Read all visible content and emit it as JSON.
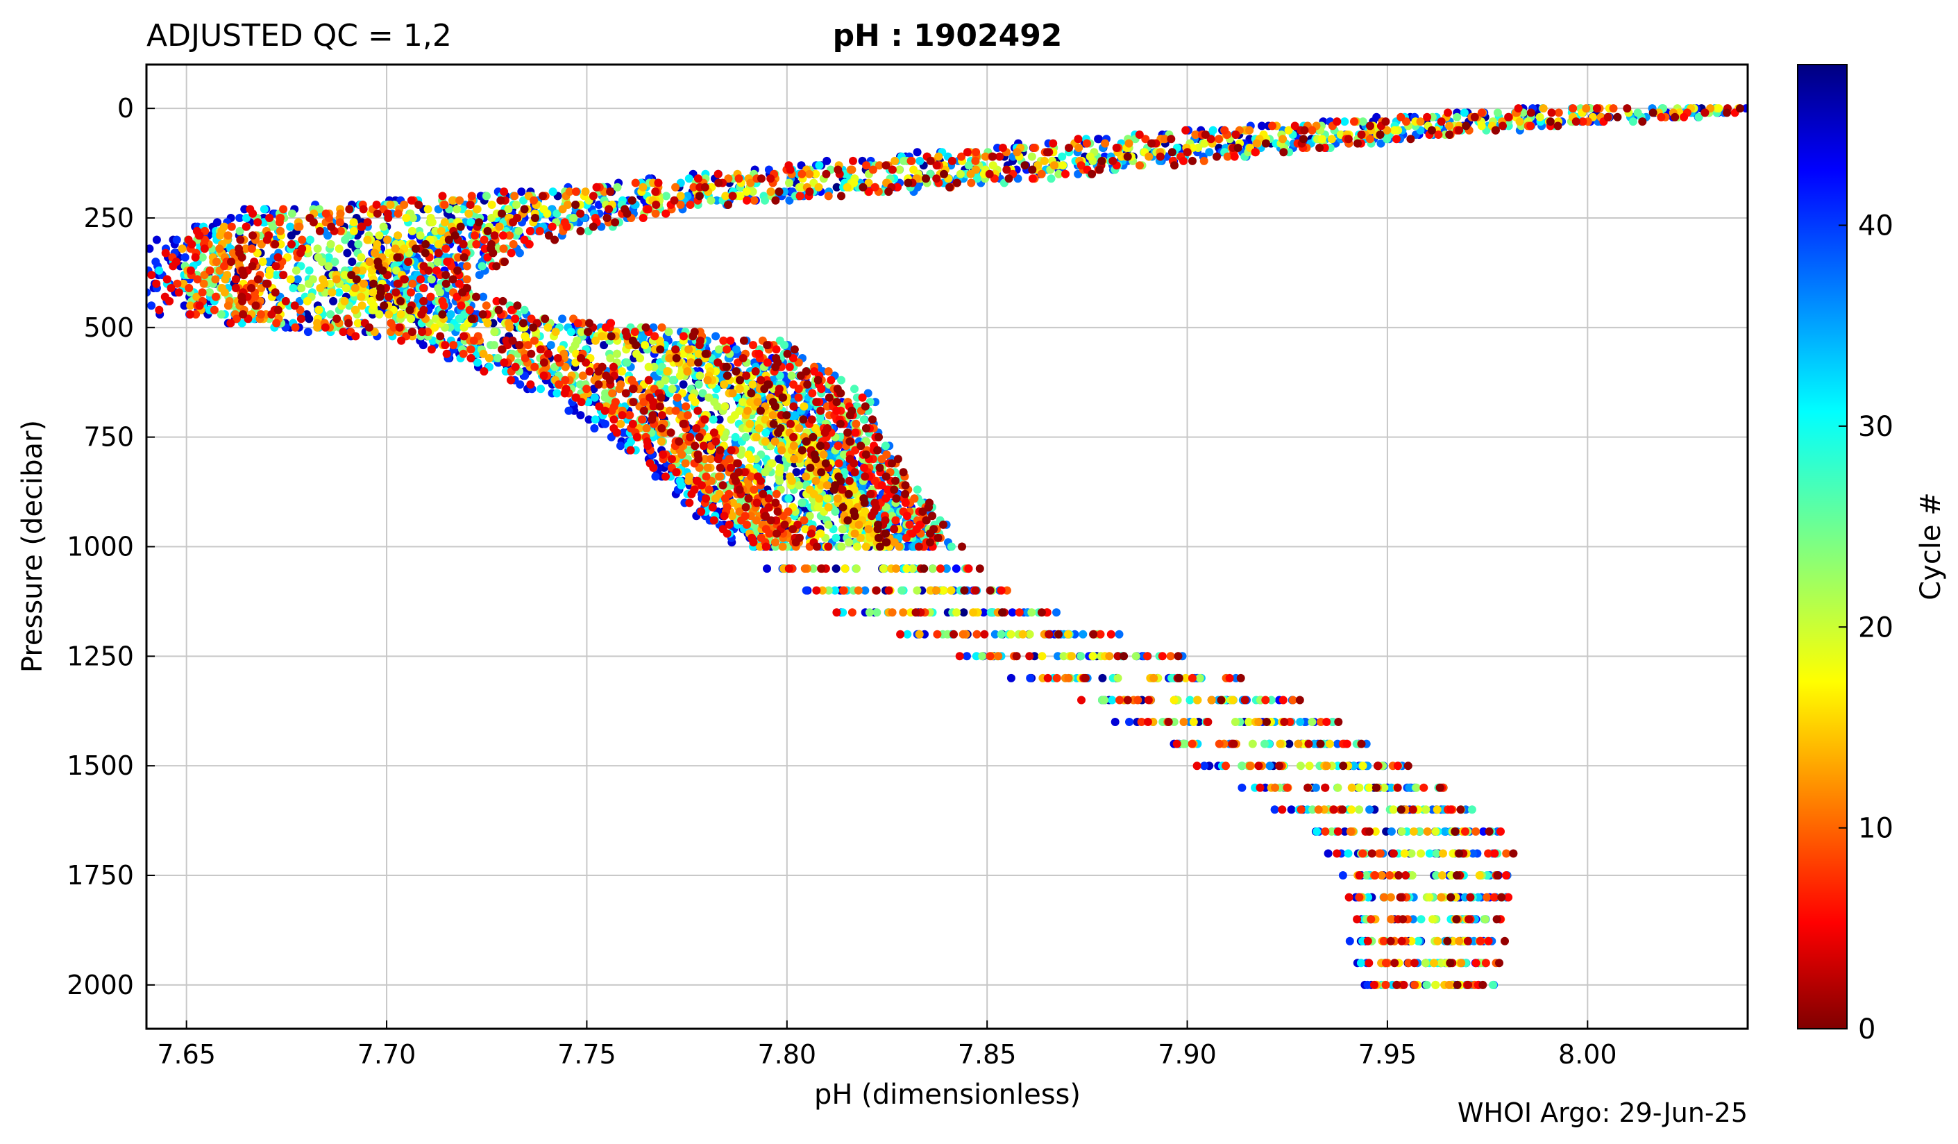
{
  "chart_data": {
    "type": "scatter",
    "title_left": "ADJUSTED QC = 1,2",
    "title_center": "pH : 1902492",
    "xlabel": "pH  (dimensionless)",
    "ylabel": "Pressure  (decibar)",
    "footer": "WHOI Argo: 29-Jun-25",
    "xlim": [
      7.64,
      8.04
    ],
    "ylim": [
      2100,
      -100
    ],
    "y_inverted": true,
    "grid": true,
    "xticks": [
      7.65,
      7.7,
      7.75,
      7.8,
      7.85,
      7.9,
      7.95,
      8.0
    ],
    "xtick_labels": [
      "7.65",
      "7.70",
      "7.75",
      "7.80",
      "7.85",
      "7.90",
      "7.95",
      "8.00"
    ],
    "yticks": [
      0,
      250,
      500,
      750,
      1000,
      1250,
      1500,
      1750,
      2000
    ],
    "ytick_labels": [
      "0",
      "250",
      "500",
      "750",
      "1000",
      "1250",
      "1500",
      "1750",
      "2000"
    ],
    "colorbar": {
      "label": "Cycle #",
      "range": [
        0,
        48
      ],
      "colormap": "jet",
      "ticks": [
        0,
        10,
        20,
        30,
        40
      ],
      "tick_labels": [
        "0",
        "10",
        "20",
        "30",
        "40"
      ]
    },
    "profile_guide": [
      [
        8.02,
        0
      ],
      [
        7.94,
        50
      ],
      [
        7.88,
        100
      ],
      [
        7.8,
        175
      ],
      [
        7.72,
        230
      ],
      [
        7.69,
        300
      ],
      [
        7.68,
        400
      ],
      [
        7.69,
        470
      ],
      [
        7.75,
        530
      ],
      [
        7.78,
        650
      ],
      [
        7.79,
        750
      ],
      [
        7.8,
        850
      ],
      [
        7.81,
        950
      ],
      [
        7.82,
        1050
      ],
      [
        7.84,
        1150
      ],
      [
        7.87,
        1250
      ],
      [
        7.9,
        1350
      ],
      [
        7.92,
        1450
      ],
      [
        7.94,
        1550
      ],
      [
        7.955,
        1650
      ],
      [
        7.96,
        1750
      ],
      [
        7.96,
        1850
      ],
      [
        7.96,
        2000
      ]
    ],
    "spread_guide": [
      [
        0,
        0.035
      ],
      [
        250,
        0.05
      ],
      [
        400,
        0.035
      ],
      [
        500,
        0.045
      ],
      [
        750,
        0.03
      ],
      [
        1000,
        0.025
      ],
      [
        1500,
        0.025
      ],
      [
        1750,
        0.02
      ],
      [
        2000,
        0.015
      ]
    ],
    "cycle_count": 48,
    "profile_sample_step": 10
  }
}
